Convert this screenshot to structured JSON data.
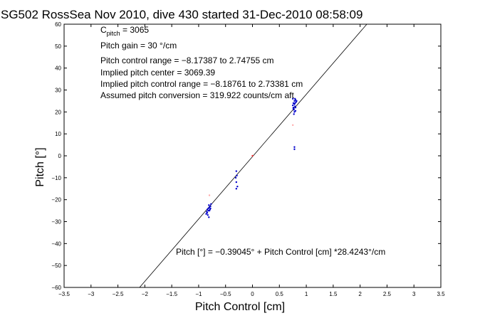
{
  "chart_data": {
    "type": "scatter",
    "title": "SG502 RossSea Nov 2010, dive 430 started 31-Dec-2010 08:58:09",
    "xlabel": "Pitch Control [cm]",
    "ylabel": "Pitch [°]",
    "xlim": [
      -3.5,
      3.5
    ],
    "ylim": [
      -60,
      60
    ],
    "x_ticks": [
      -3.5,
      -3,
      -2.5,
      -2,
      -1.5,
      -1,
      -0.5,
      0,
      0.5,
      1,
      1.5,
      2,
      2.5,
      3,
      3.5
    ],
    "y_ticks": [
      -60,
      -50,
      -40,
      -30,
      -20,
      -10,
      0,
      10,
      20,
      30,
      40,
      50,
      60
    ],
    "grid": false,
    "annotations": {
      "cpitch_main": "C",
      "cpitch_sub": "pitch",
      "cpitch_value": " = 3065",
      "lines": [
        "Pitch gain = 30 °/cm",
        "Pitch control range = −8.17387 to 2.74755 cm",
        "Implied pitch center = 3069.39",
        "Implied pitch control range = −8.18761 to 2.73381 cm",
        "Assumed pitch conversion = 319.922 counts/cm aft"
      ],
      "fit_label": "Pitch [°] = −0.39045° + Pitch Control [cm] *28.4243°/cm"
    },
    "fit": {
      "intercept": -0.39045,
      "slope": 28.4243
    },
    "series": [
      {
        "color": "#0000cc",
        "points": [
          [
            -0.82,
            -24
          ],
          [
            -0.8,
            -25
          ],
          [
            -0.84,
            -26
          ],
          [
            -0.78,
            -23
          ],
          [
            -0.81,
            -22.5
          ],
          [
            -0.85,
            -25.5
          ],
          [
            -0.79,
            -24.5
          ],
          [
            -0.83,
            -27
          ],
          [
            -0.8,
            -23.5
          ],
          [
            -0.77,
            -22
          ],
          [
            -0.86,
            -26.5
          ],
          [
            -0.82,
            -25
          ],
          [
            -0.78,
            -24
          ],
          [
            -0.81,
            -28
          ],
          [
            -0.84,
            -24.5
          ],
          [
            -0.3,
            -7
          ],
          [
            -0.29,
            -9
          ],
          [
            -0.31,
            -10
          ],
          [
            -0.3,
            -12
          ],
          [
            -0.28,
            -14
          ],
          [
            -0.3,
            -15
          ],
          [
            0.78,
            25
          ],
          [
            0.76,
            24
          ],
          [
            0.8,
            22
          ],
          [
            0.77,
            21
          ],
          [
            0.79,
            26
          ],
          [
            0.75,
            23
          ],
          [
            0.81,
            24.5
          ],
          [
            0.78,
            20
          ],
          [
            0.76,
            21.5
          ],
          [
            0.8,
            25.5
          ],
          [
            0.79,
            22.5
          ],
          [
            0.77,
            19
          ],
          [
            0.78,
            23.5
          ],
          [
            0.82,
            25
          ],
          [
            0.75,
            26
          ],
          [
            0.8,
            20.5
          ],
          [
            0.79,
            24
          ],
          [
            0.76,
            22
          ],
          [
            0.78,
            4
          ],
          [
            0.78,
            3
          ]
        ]
      },
      {
        "color": "#ff3333",
        "points": [
          [
            0.0,
            0.0
          ]
        ]
      },
      {
        "color": "#ffaaaa",
        "points": [
          [
            -0.8,
            -18
          ],
          [
            0.75,
            14
          ]
        ]
      }
    ]
  }
}
